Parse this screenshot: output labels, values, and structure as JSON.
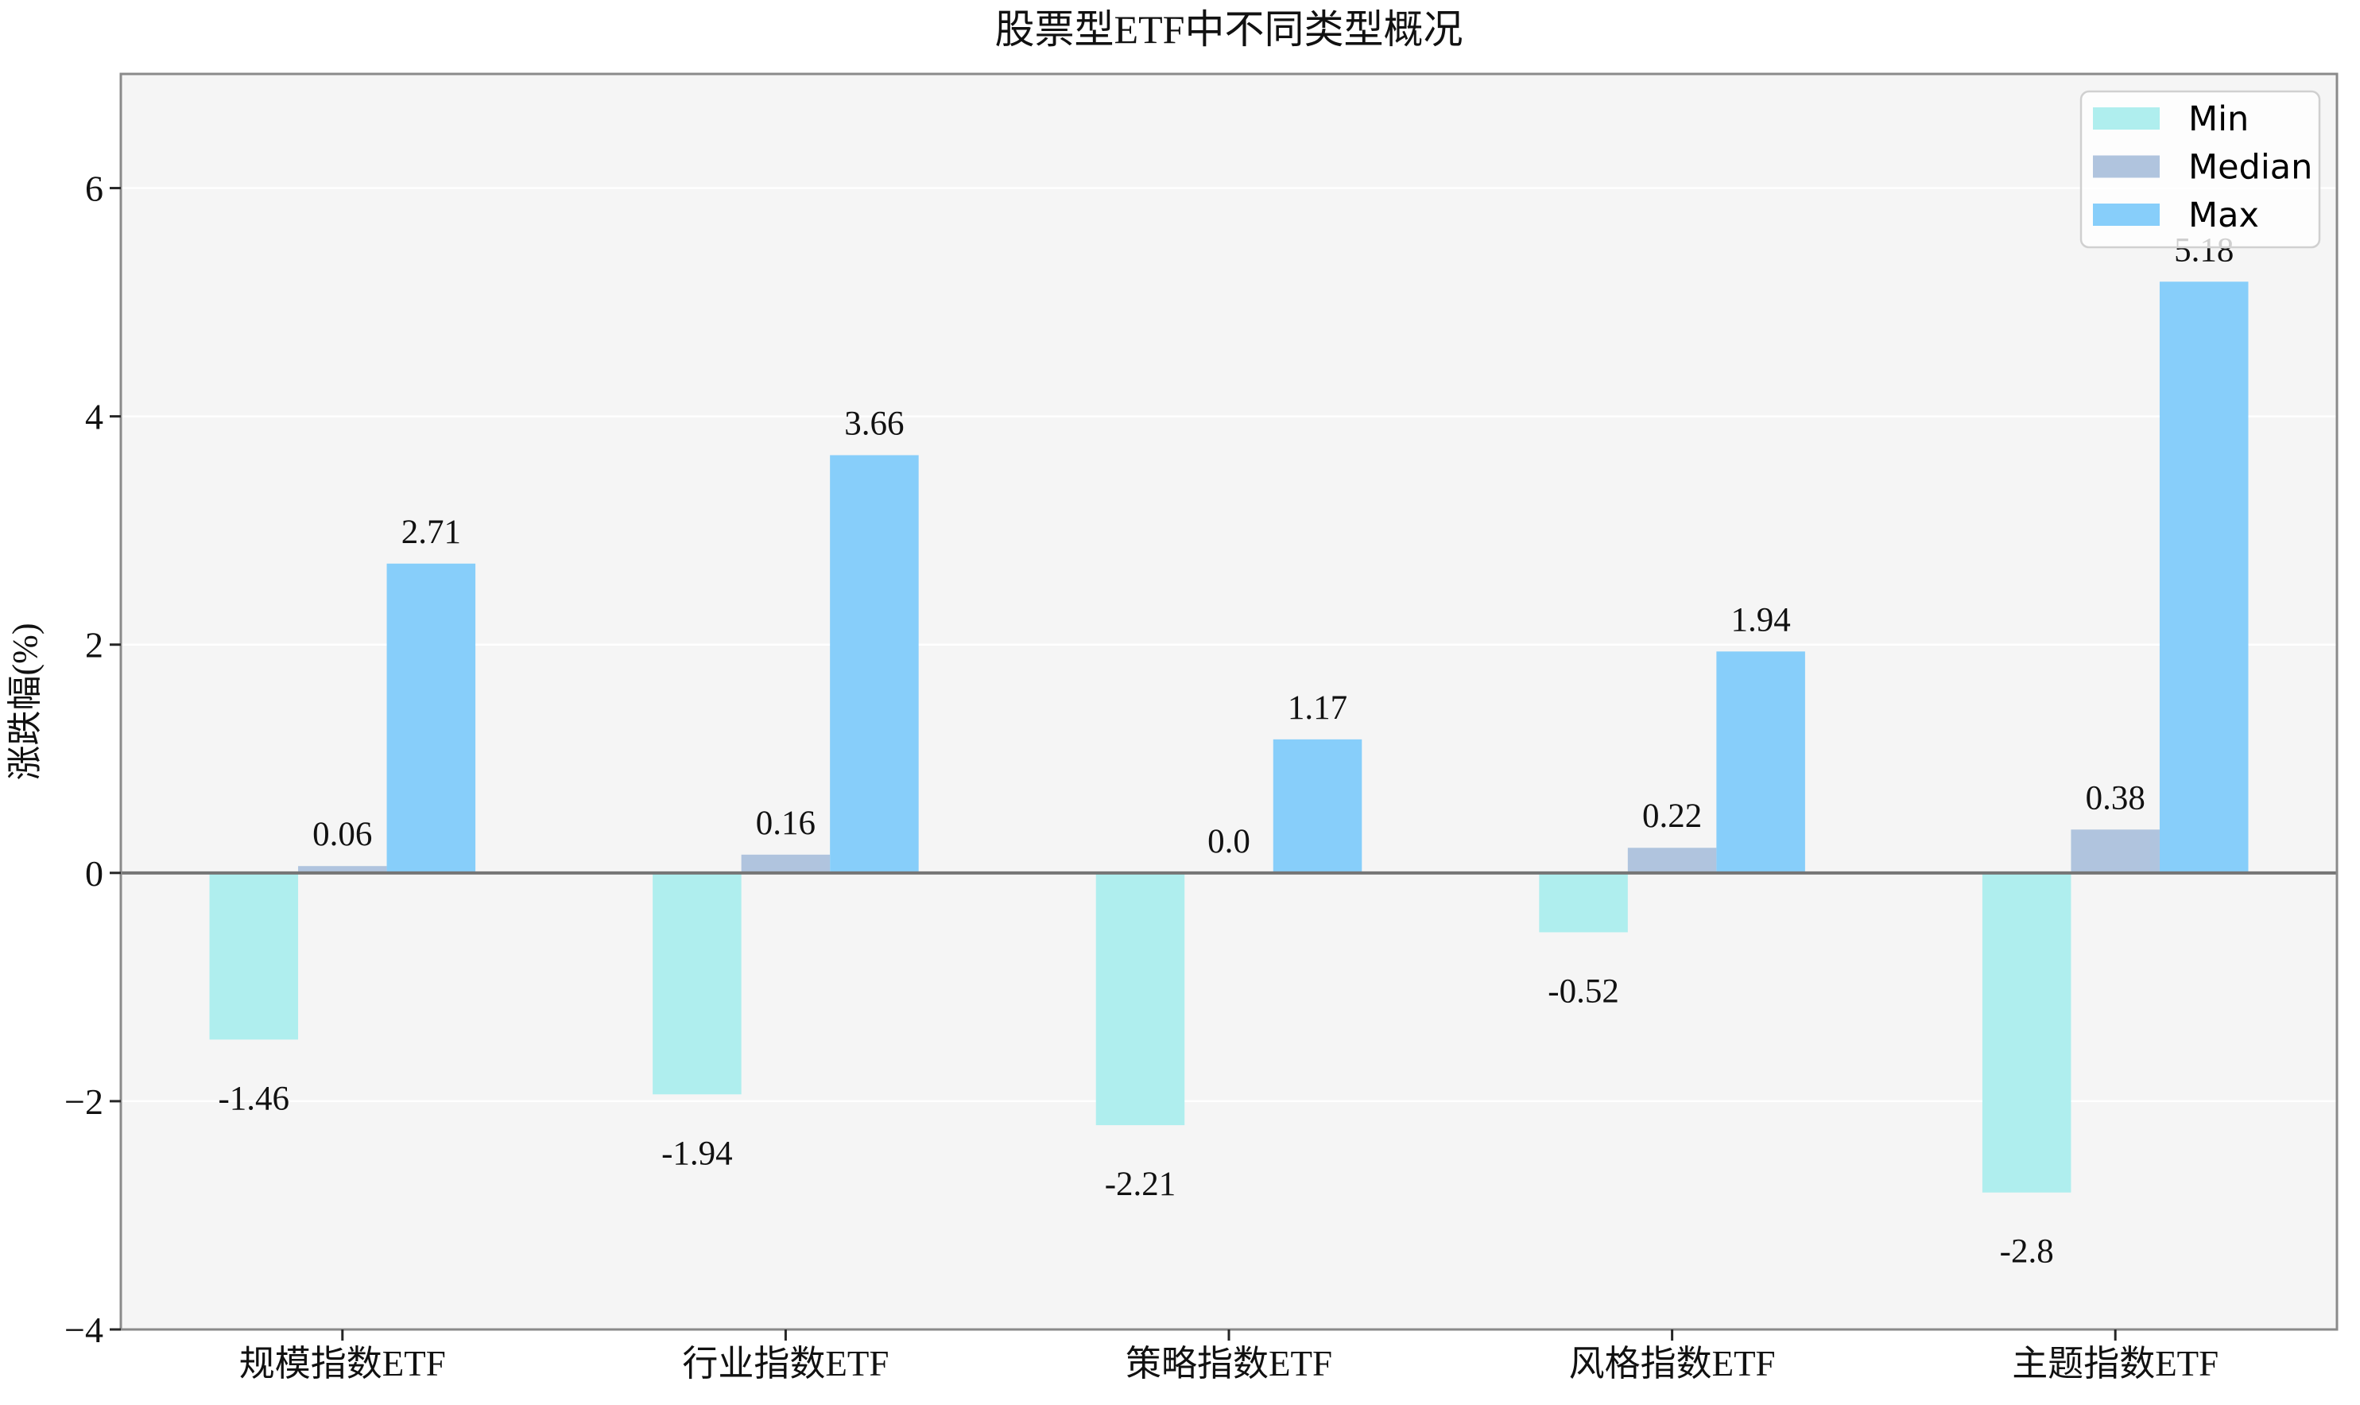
{
  "figure": {
    "title": "股票型ETF中不同类型概况",
    "background": "#ffffff",
    "plot_background": "#f5f5f5"
  },
  "chart_data": {
    "type": "bar",
    "title": "股票型ETF中不同类型概况",
    "xlabel": "",
    "ylabel": "涨跌幅(%)",
    "categories": [
      "规模指数ETF",
      "行业指数ETF",
      "策略指数ETF",
      "风格指数ETF",
      "主题指数ETF"
    ],
    "series": [
      {
        "name": "Min",
        "color": "#afeeee",
        "values": [
          -1.46,
          -1.94,
          -2.21,
          -0.52,
          -2.8
        ],
        "labels": [
          "-1.46",
          "-1.94",
          "-2.21",
          "-0.52",
          "-2.8"
        ]
      },
      {
        "name": "Median",
        "color": "#b0c4de",
        "values": [
          0.06,
          0.16,
          0.0,
          0.22,
          0.38
        ],
        "labels": [
          "0.06",
          "0.16",
          "0.0",
          "0.22",
          "0.38"
        ]
      },
      {
        "name": "Max",
        "color": "#87cefa",
        "values": [
          2.71,
          3.66,
          1.17,
          1.94,
          5.18
        ],
        "labels": [
          "2.71",
          "3.66",
          "1.17",
          "1.94",
          "5.18"
        ]
      }
    ],
    "ylim": [
      -4,
      7
    ],
    "yticks": [
      -4,
      -2,
      0,
      2,
      4,
      6
    ],
    "ytick_labels": [
      "−4",
      "−2",
      "0",
      "2",
      "4",
      "6"
    ],
    "grid": true,
    "legend_position": "upper right",
    "legend_entries": [
      "Min",
      "Median",
      "Max"
    ]
  },
  "colors": {
    "grid_line": "#ffffff",
    "zero_line": "#757575",
    "spine": "#8a8a8a",
    "tick_mark": "#262626",
    "text": "#111111",
    "legend_background": "#ffffff",
    "legend_border": "#d0d0d0",
    "occluded_label": "#b0b0b0"
  }
}
